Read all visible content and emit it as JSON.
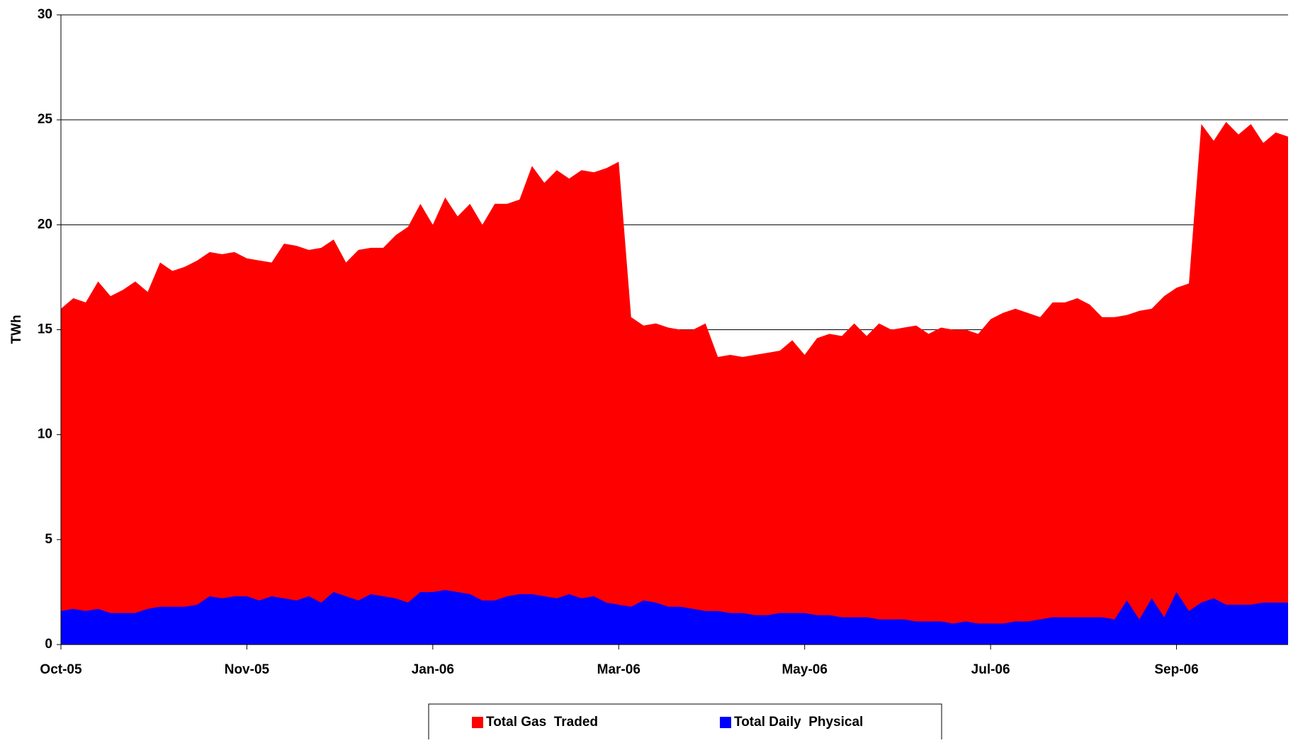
{
  "chart_data": {
    "type": "area",
    "y_label": "TWh",
    "categories": [
      "Oct-05",
      null,
      null,
      null,
      null,
      null,
      null,
      null,
      null,
      null,
      null,
      null,
      null,
      null,
      null,
      "Nov-05",
      null,
      null,
      null,
      null,
      null,
      null,
      null,
      null,
      null,
      null,
      null,
      null,
      null,
      null,
      "Jan-06",
      null,
      null,
      null,
      null,
      null,
      null,
      null,
      null,
      null,
      null,
      null,
      null,
      null,
      null,
      "Mar-06",
      null,
      null,
      null,
      null,
      null,
      null,
      null,
      null,
      null,
      null,
      null,
      null,
      null,
      null,
      "May-06",
      null,
      null,
      null,
      null,
      null,
      null,
      null,
      null,
      null,
      null,
      null,
      null,
      null,
      null,
      "Jul-06",
      null,
      null,
      null,
      null,
      null,
      null,
      null,
      null,
      null,
      null,
      null,
      null,
      null,
      null,
      "Sep-06",
      null,
      null,
      null,
      null,
      null,
      null,
      null,
      null,
      null
    ],
    "series": [
      {
        "name": "Total Gas  Traded",
        "color": "#ff0000",
        "values": [
          16.0,
          16.5,
          16.3,
          17.3,
          16.6,
          16.9,
          17.3,
          16.8,
          18.2,
          17.8,
          18.0,
          18.3,
          18.7,
          18.6,
          18.7,
          18.4,
          18.3,
          18.2,
          19.1,
          19.0,
          18.8,
          18.9,
          19.3,
          18.2,
          18.8,
          18.9,
          18.9,
          19.5,
          19.9,
          21.0,
          20.0,
          21.3,
          20.4,
          21.0,
          20.0,
          21.0,
          21.0,
          21.2,
          22.8,
          22.0,
          22.6,
          22.2,
          22.6,
          22.5,
          22.7,
          23.0,
          15.6,
          15.2,
          15.3,
          15.1,
          15.0,
          15.0,
          15.3,
          13.7,
          13.8,
          13.7,
          13.8,
          13.9,
          14.0,
          14.5,
          13.8,
          14.6,
          14.8,
          14.7,
          15.3,
          14.7,
          15.3,
          15.0,
          15.1,
          15.2,
          14.8,
          15.1,
          15.0,
          15.0,
          14.8,
          15.5,
          15.8,
          16.0,
          15.8,
          15.6,
          16.3,
          16.3,
          16.5,
          16.2,
          15.6,
          15.6,
          15.7,
          15.9,
          16.0,
          16.6,
          17.0,
          17.2,
          24.8,
          24.0,
          24.9,
          24.3,
          24.8,
          23.9,
          24.4,
          24.2
        ]
      },
      {
        "name": "Total Daily  Physical",
        "color": "#0000ff",
        "values": [
          1.6,
          1.7,
          1.6,
          1.7,
          1.5,
          1.5,
          1.5,
          1.7,
          1.8,
          1.8,
          1.8,
          1.9,
          2.3,
          2.2,
          2.3,
          2.3,
          2.1,
          2.3,
          2.2,
          2.1,
          2.3,
          2.0,
          2.5,
          2.3,
          2.1,
          2.4,
          2.3,
          2.2,
          2.0,
          2.5,
          2.5,
          2.6,
          2.5,
          2.4,
          2.1,
          2.1,
          2.3,
          2.4,
          2.4,
          2.3,
          2.2,
          2.4,
          2.2,
          2.3,
          2.0,
          1.9,
          1.8,
          2.1,
          2.0,
          1.8,
          1.8,
          1.7,
          1.6,
          1.6,
          1.5,
          1.5,
          1.4,
          1.4,
          1.5,
          1.5,
          1.5,
          1.4,
          1.4,
          1.3,
          1.3,
          1.3,
          1.2,
          1.2,
          1.2,
          1.1,
          1.1,
          1.1,
          1.0,
          1.1,
          1.0,
          1.0,
          1.0,
          1.1,
          1.1,
          1.2,
          1.3,
          1.3,
          1.3,
          1.3,
          1.3,
          1.2,
          2.1,
          1.2,
          2.2,
          1.3,
          2.5,
          1.6,
          2.0,
          2.2,
          1.9,
          1.9,
          1.9,
          2.0,
          2.0,
          2.0
        ]
      }
    ],
    "ylim": [
      0,
      30
    ],
    "yticks": [
      0,
      5,
      10,
      15,
      20,
      25,
      30
    ],
    "grid": true,
    "legend": "bottom"
  }
}
